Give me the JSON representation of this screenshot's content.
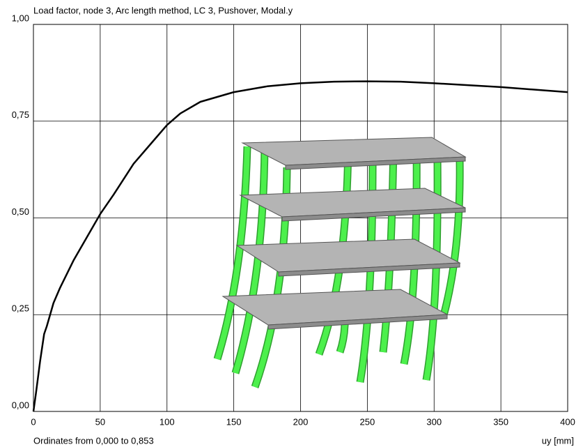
{
  "chart_data": {
    "type": "line",
    "title": "Load factor, node 3, Arc length method, LC 3, Pushover, Modal.y",
    "x_label": "uy [mm]",
    "footer": "Ordinates from 0,000 to 0,853",
    "x": [
      0,
      2,
      5,
      8,
      10,
      15,
      20,
      30,
      40,
      50,
      60,
      75,
      90,
      100,
      110,
      125,
      150,
      175,
      200,
      225,
      250,
      275,
      300,
      350,
      400
    ],
    "values": [
      0,
      0.05,
      0.13,
      0.2,
      0.22,
      0.28,
      0.32,
      0.39,
      0.45,
      0.51,
      0.56,
      0.64,
      0.7,
      0.74,
      0.77,
      0.8,
      0.825,
      0.84,
      0.848,
      0.852,
      0.853,
      0.852,
      0.848,
      0.838,
      0.825
    ],
    "color": "#000000",
    "xlim": [
      0,
      400
    ],
    "ylim": [
      0,
      1
    ],
    "xticks": [
      0,
      50,
      100,
      150,
      200,
      250,
      300,
      350,
      400
    ],
    "yticks": [
      {
        "value": 0,
        "label": "0,00"
      },
      {
        "value": 0.25,
        "label": "0,25"
      },
      {
        "value": 0.5,
        "label": "0,50"
      },
      {
        "value": 0.75,
        "label": "0,75"
      },
      {
        "value": 1,
        "label": "1,00"
      }
    ],
    "grid": true
  }
}
